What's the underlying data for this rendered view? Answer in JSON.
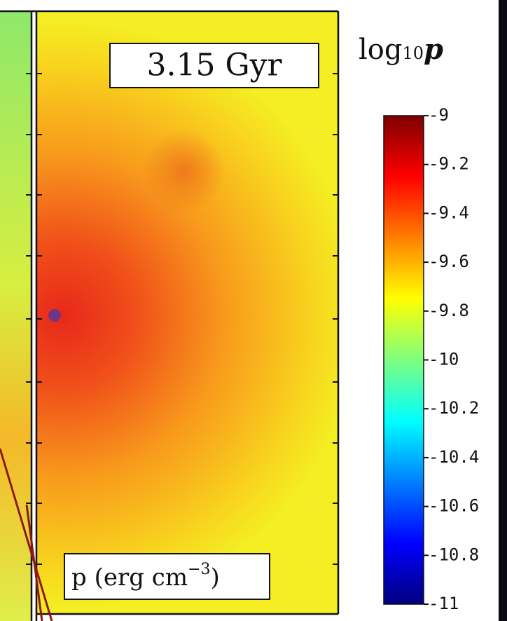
{
  "chart_data": {
    "type": "heatmap",
    "annotation": "3.15 Gyr",
    "quantity": {
      "text": "p (erg cm",
      "superscript": "−3",
      "close": ")"
    },
    "colorbar": {
      "label": {
        "base": "log",
        "subscript": "10",
        "variable": "p"
      },
      "lim": [
        -11,
        -9
      ],
      "ticks": [
        -9,
        -9.2,
        -9.4,
        -9.6,
        -9.8,
        -10,
        -10.2,
        -10.4,
        -10.6,
        -10.8,
        -11
      ],
      "colormap": [
        "#00007f",
        "#0000ff",
        "#007fff",
        "#00ffff",
        "#7fff7f",
        "#ffff00",
        "#ff7f00",
        "#ff0000",
        "#7f0000"
      ]
    }
  }
}
